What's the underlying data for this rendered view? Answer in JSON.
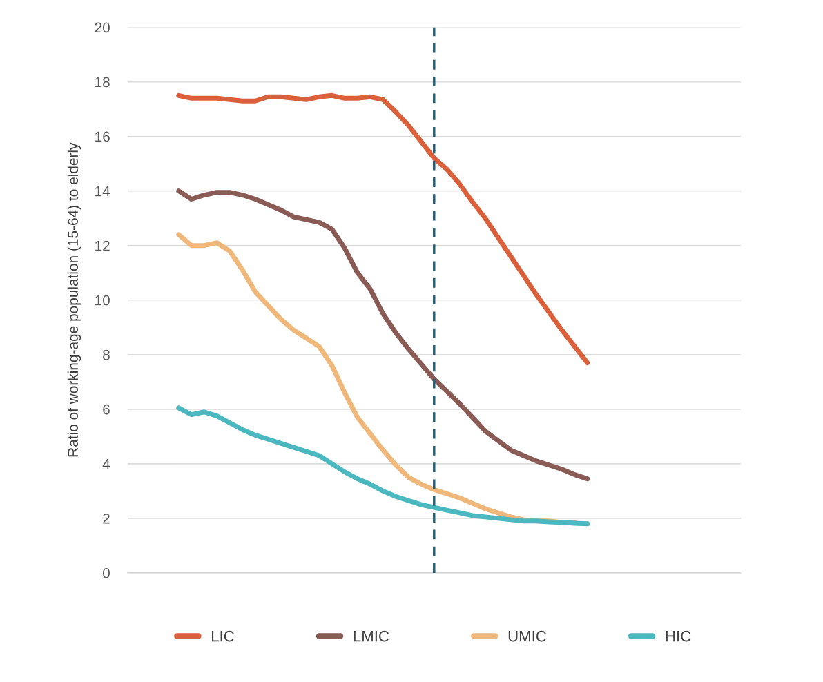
{
  "chart_data": {
    "type": "line",
    "ylabel": "Ratio of working-age population (15-64) to elderly",
    "categories": [
      null,
      null,
      null,
      null,
      null,
      null,
      null,
      null,
      null,
      null,
      null,
      null,
      null,
      null,
      null,
      null,
      null,
      null,
      null,
      null,
      null,
      null,
      null,
      null,
      null,
      null,
      null,
      null,
      null,
      null,
      null,
      null,
      null,
      null,
      null,
      null,
      null,
      null,
      null,
      null,
      null,
      null,
      null,
      null,
      null,
      null,
      null,
      null,
      null
    ],
    "ylim": [
      0,
      20
    ],
    "yticks": [
      0,
      2,
      4,
      6,
      8,
      10,
      12,
      14,
      16,
      18,
      20
    ],
    "grid": "y",
    "legend": "bottom",
    "tick_labels": "y",
    "line_style": "solid",
    "series": [
      {
        "name": "LIC",
        "color": "#d9603b",
        "values": [
          null,
          null,
          null,
          null,
          17.5,
          17.4,
          17.4,
          17.4,
          17.35,
          17.3,
          17.3,
          17.45,
          17.45,
          17.4,
          17.35,
          17.45,
          17.5,
          17.4,
          17.4,
          17.45,
          17.35,
          16.9,
          16.4,
          15.8,
          15.2,
          14.8,
          14.25,
          13.6,
          13.0,
          12.3,
          11.6,
          10.9,
          10.2,
          9.55,
          8.9,
          8.3,
          7.7,
          null,
          null,
          null,
          null,
          null,
          null,
          null,
          null,
          null,
          null,
          null,
          null
        ]
      },
      {
        "name": "LMIC",
        "color": "#8a5a55",
        "values": [
          null,
          null,
          null,
          null,
          14.0,
          13.7,
          13.85,
          13.95,
          13.95,
          13.85,
          13.7,
          13.5,
          13.3,
          13.05,
          12.95,
          12.85,
          12.6,
          11.9,
          11.0,
          10.4,
          9.5,
          8.8,
          8.2,
          7.65,
          7.1,
          6.65,
          6.2,
          5.7,
          5.2,
          4.85,
          4.5,
          4.3,
          4.1,
          3.95,
          3.8,
          3.6,
          3.45,
          null,
          null,
          null,
          null,
          null,
          null,
          null,
          null,
          null,
          null,
          null,
          null
        ]
      },
      {
        "name": "UMIC",
        "color": "#f0b77a",
        "values": [
          null,
          null,
          null,
          null,
          12.4,
          12.0,
          12.0,
          12.1,
          11.8,
          11.1,
          10.3,
          9.8,
          9.3,
          8.9,
          8.6,
          8.3,
          7.6,
          6.6,
          5.7,
          5.1,
          4.5,
          3.95,
          3.5,
          3.25,
          3.05,
          2.9,
          2.75,
          2.55,
          2.35,
          2.2,
          2.05,
          1.95,
          1.9,
          1.9,
          1.85,
          1.85,
          null,
          null,
          null,
          null,
          null,
          null,
          null,
          null,
          null,
          null,
          null,
          null,
          null
        ]
      },
      {
        "name": "HIC",
        "color": "#4bb8bf",
        "values": [
          null,
          null,
          null,
          null,
          6.05,
          5.8,
          5.9,
          5.75,
          5.5,
          5.25,
          5.05,
          4.9,
          4.75,
          4.6,
          4.45,
          4.3,
          4.0,
          3.7,
          3.45,
          3.25,
          3.0,
          2.8,
          2.65,
          2.5,
          2.4,
          2.3,
          2.2,
          2.1,
          2.05,
          2.0,
          1.95,
          1.9,
          1.9,
          1.87,
          1.85,
          1.82,
          1.8,
          null,
          null,
          null,
          null,
          null,
          null,
          null,
          null,
          null,
          null,
          null,
          null
        ]
      }
    ]
  }
}
